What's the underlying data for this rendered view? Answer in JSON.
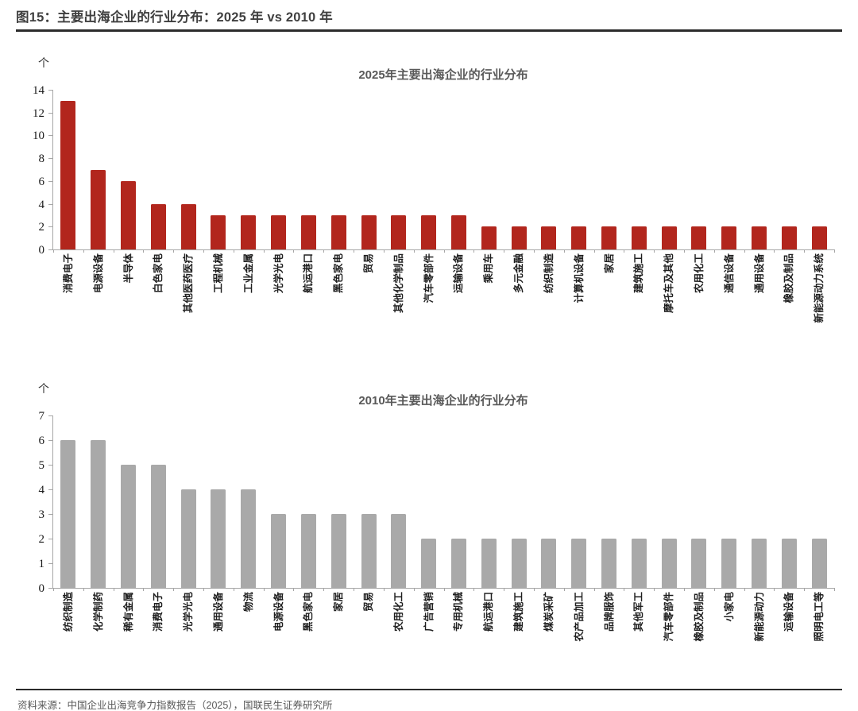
{
  "header": {
    "title": "图15：主要出海企业的行业分布：2025 年 vs 2010 年"
  },
  "footer": {
    "source": "资料来源：中国企业出海竞争力指数报告（2025），国联民生证券研究所"
  },
  "colors": {
    "bar_2025": "#b2261d",
    "bar_2010": "#a9a9a9",
    "axis": "#a6a6a6",
    "chart_title": "#595959",
    "header_text": "#3f3f3f"
  },
  "chart_data": [
    {
      "type": "bar",
      "title": "2025年主要出海企业的行业分布",
      "unit": "个",
      "ylabel": "个",
      "ylim": [
        0,
        14
      ],
      "ytick_step": 2,
      "grid": false,
      "legend": "none",
      "bar_color": "#b2261d",
      "categories": [
        "消费电子",
        "电源设备",
        "半导体",
        "白色家电",
        "其他医药医疗",
        "工程机械",
        "工业金属",
        "光学光电",
        "航运港口",
        "黑色家电",
        "贸易",
        "其他化学制品",
        "汽车零部件",
        "运输设备",
        "乘用车",
        "多元金融",
        "纺织制造",
        "计算机设备",
        "家居",
        "建筑施工",
        "摩托车及其他",
        "农用化工",
        "通信设备",
        "通用设备",
        "橡胶及制品",
        "新能源动力系统"
      ],
      "values": [
        13,
        7,
        6,
        4,
        4,
        3,
        3,
        3,
        3,
        3,
        3,
        3,
        3,
        3,
        2,
        2,
        2,
        2,
        2,
        2,
        2,
        2,
        2,
        2,
        2,
        2
      ]
    },
    {
      "type": "bar",
      "title": "2010年主要出海企业的行业分布",
      "unit": "个",
      "ylabel": "个",
      "ylim": [
        0,
        7
      ],
      "ytick_step": 1,
      "grid": false,
      "legend": "none",
      "bar_color": "#a9a9a9",
      "categories": [
        "纺织制造",
        "化学制药",
        "稀有金属",
        "消费电子",
        "光学光电",
        "通用设备",
        "物流",
        "电源设备",
        "黑色家电",
        "家居",
        "贸易",
        "农用化工",
        "广告营销",
        "专用机械",
        "航运港口",
        "建筑施工",
        "煤炭采矿",
        "农产品加工",
        "品牌服饰",
        "其他军工",
        "汽车零部件",
        "橡胶及制品",
        "小家电",
        "新能源动力",
        "运输设备",
        "照明电工等"
      ],
      "values": [
        6,
        6,
        5,
        5,
        4,
        4,
        4,
        3,
        3,
        3,
        3,
        3,
        2,
        2,
        2,
        2,
        2,
        2,
        2,
        2,
        2,
        2,
        2,
        2,
        2,
        2
      ]
    }
  ]
}
